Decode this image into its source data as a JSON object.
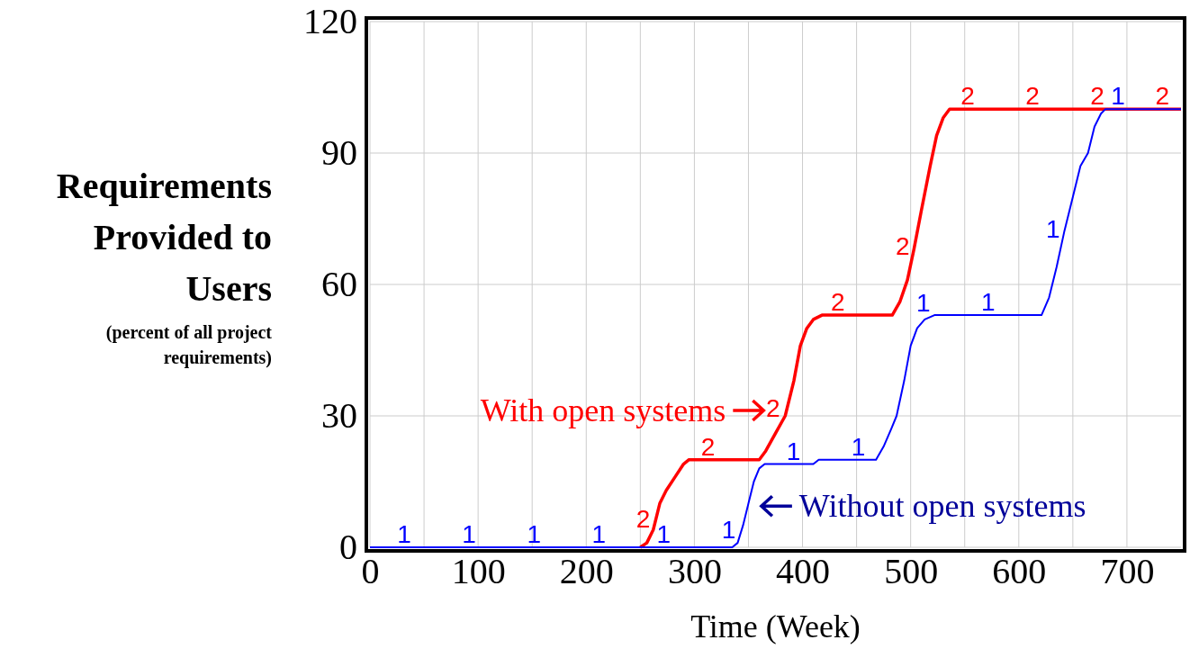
{
  "chart_data": {
    "type": "line",
    "xlabel": "Time (Week)",
    "ylabel": "Requirements Provided to Users",
    "annotations": [
      "(percent of all project requirements)",
      {
        "text": "With open systems",
        "x": 384,
        "y": 30
      },
      {
        "text": "Without open systems",
        "x": 352,
        "y": 10
      }
    ],
    "xlim": [
      0,
      750
    ],
    "ylim": [
      0,
      120
    ],
    "xticks": [
      0,
      {
        "value": 50,
        "label": null
      },
      100,
      {
        "value": 150,
        "label": null
      },
      200,
      {
        "value": 250,
        "label": null
      },
      300,
      {
        "value": 350,
        "label": null
      },
      400,
      {
        "value": 450,
        "label": null
      },
      500,
      {
        "value": 550,
        "label": null
      },
      600,
      {
        "value": 650,
        "label": null
      },
      700
    ],
    "yticks": [
      0,
      30,
      60,
      90,
      120
    ],
    "grid": true,
    "line_style": "solid",
    "series": [
      {
        "name": "1",
        "color": "#0000ff",
        "x": [
          0,
          335,
          340,
          345,
          350,
          355,
          360,
          365,
          410,
          415,
          468,
          475,
          482,
          487,
          494,
          500,
          506,
          513,
          522,
          621,
          628,
          635,
          642,
          650,
          657,
          664,
          670,
          676,
          680,
          750
        ],
        "values": [
          0,
          0,
          1,
          5,
          10,
          15,
          18,
          19,
          19,
          20,
          20,
          23,
          27,
          30,
          38,
          46,
          50,
          52,
          53,
          53,
          57,
          64,
          72,
          80,
          87,
          90,
          96,
          99,
          100,
          100
        ]
      },
      {
        "name": "2",
        "color": "#ff0000",
        "x": [
          250,
          256,
          262,
          268,
          274,
          282,
          290,
          295,
          360,
          366,
          375,
          384,
          392,
          398,
          404,
          410,
          418,
          483,
          490,
          497,
          503,
          510,
          518,
          524,
          530,
          536,
          750
        ],
        "values": [
          0,
          1,
          4,
          10,
          13,
          16,
          19,
          20,
          20,
          22,
          26,
          30,
          38,
          46,
          50,
          52,
          53,
          53,
          56,
          61,
          68,
          77,
          87,
          94,
          98,
          100,
          100
        ]
      }
    ]
  }
}
